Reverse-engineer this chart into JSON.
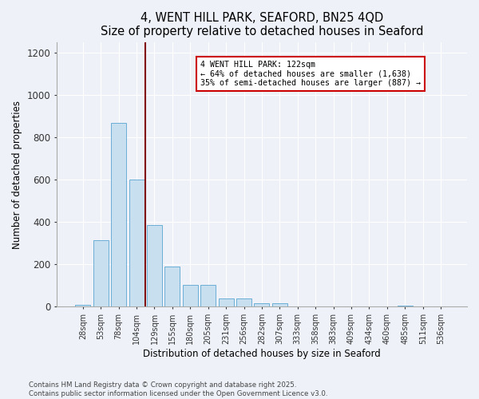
{
  "title": "4, WENT HILL PARK, SEAFORD, BN25 4QD",
  "subtitle": "Size of property relative to detached houses in Seaford",
  "xlabel": "Distribution of detached houses by size in Seaford",
  "ylabel": "Number of detached properties",
  "categories": [
    "28sqm",
    "53sqm",
    "78sqm",
    "104sqm",
    "129sqm",
    "155sqm",
    "180sqm",
    "205sqm",
    "231sqm",
    "256sqm",
    "282sqm",
    "307sqm",
    "333sqm",
    "358sqm",
    "383sqm",
    "409sqm",
    "434sqm",
    "460sqm",
    "485sqm",
    "511sqm",
    "536sqm"
  ],
  "values": [
    10,
    315,
    870,
    600,
    385,
    190,
    105,
    105,
    40,
    40,
    15,
    15,
    0,
    0,
    0,
    0,
    0,
    0,
    5,
    0,
    0
  ],
  "bar_color": "#c8dff0",
  "bar_edge_color": "#6aaed6",
  "marker_color": "#800000",
  "annotation_text": "4 WENT HILL PARK: 122sqm\n← 64% of detached houses are smaller (1,638)\n35% of semi-detached houses are larger (887) →",
  "annotation_box_color": "#ffffff",
  "annotation_box_edge": "#cc0000",
  "ylim": [
    0,
    1250
  ],
  "yticks": [
    0,
    200,
    400,
    600,
    800,
    1000,
    1200
  ],
  "footer": "Contains HM Land Registry data © Crown copyright and database right 2025.\nContains public sector information licensed under the Open Government Licence v3.0.",
  "bg_color": "#eef2f8"
}
